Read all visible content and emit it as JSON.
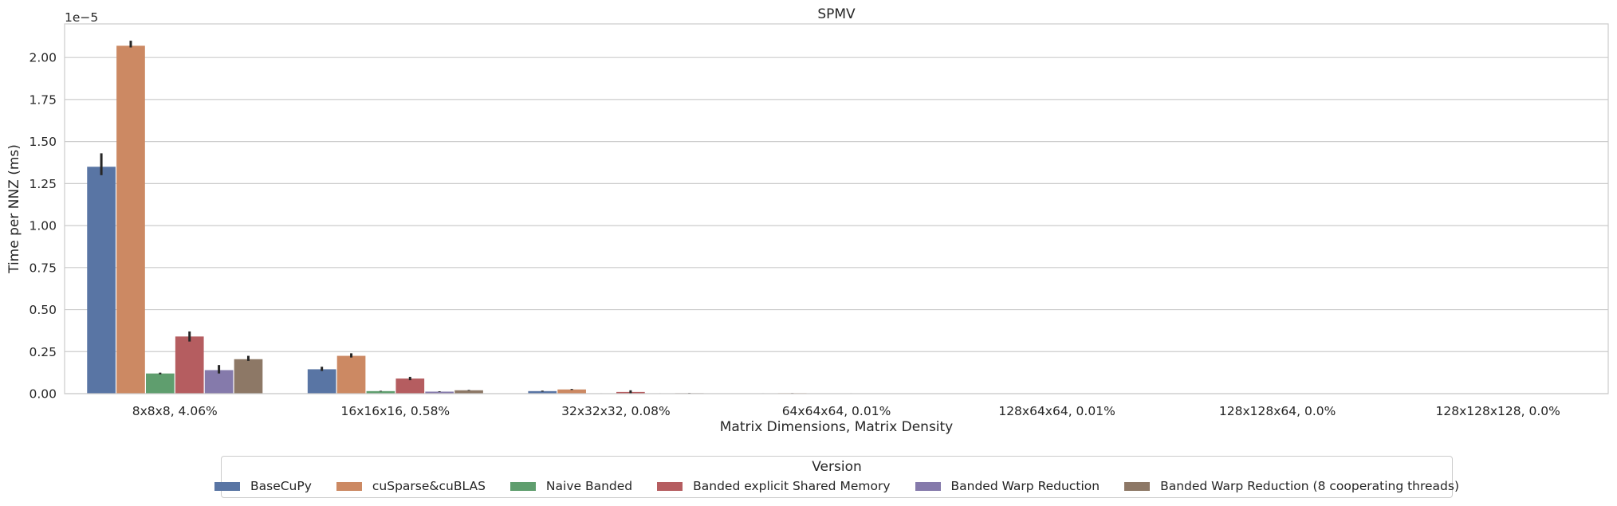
{
  "chart_data": {
    "type": "bar",
    "title": "SPMV",
    "xlabel": "Matrix Dimensions, Matrix Density",
    "ylabel": "Time per NNZ (ms)",
    "scale_label": "1e−5",
    "ylim": [
      0,
      2.2
    ],
    "yticks": [
      "0.00",
      "0.25",
      "0.50",
      "0.75",
      "1.00",
      "1.25",
      "1.50",
      "1.75",
      "2.00"
    ],
    "grid": true,
    "legend_position": "bottom-center",
    "legend_title": "Version",
    "categories": [
      "8x8x8, 4.06%",
      "16x16x16, 0.58%",
      "32x32x32, 0.08%",
      "64x64x64, 0.01%",
      "128x64x64, 0.01%",
      "128x128x64, 0.0%",
      "128x128x128, 0.0%"
    ],
    "series": [
      {
        "name": "BaseCuPy",
        "color": "#5975a4",
        "values": [
          1.35,
          0.145,
          0.015,
          0.002,
          0.001,
          0.0005,
          0.0003
        ],
        "error": [
          [
            1.3,
            1.43
          ],
          [
            0.135,
            0.16
          ],
          [
            0.012,
            0.018
          ],
          [
            0.0015,
            0.0025
          ],
          [
            0.0008,
            0.0012
          ],
          [
            0.0004,
            0.0006
          ],
          [
            0.0002,
            0.0004
          ]
        ]
      },
      {
        "name": "cuSparse&cuBLAS",
        "color": "#cc8963",
        "values": [
          2.07,
          0.225,
          0.025,
          0.003,
          0.0015,
          0.0007,
          0.0004
        ],
        "error": [
          [
            2.06,
            2.1
          ],
          [
            0.215,
            0.24
          ],
          [
            0.022,
            0.028
          ],
          [
            0.0025,
            0.0035
          ],
          [
            0.0012,
            0.0018
          ],
          [
            0.0005,
            0.0009
          ],
          [
            0.0003,
            0.0005
          ]
        ]
      },
      {
        "name": "Naive Banded",
        "color": "#5f9e6e",
        "values": [
          0.12,
          0.015,
          0.002,
          0.0003,
          0.0002,
          0.0001,
          0.0001
        ],
        "error": [
          [
            0.115,
            0.125
          ],
          [
            0.013,
            0.017
          ],
          [
            0.0015,
            0.0025
          ],
          [
            0.0002,
            0.0004
          ],
          [
            0.0001,
            0.0003
          ],
          [
            5e-05,
            0.00015
          ],
          [
            5e-05,
            0.00015
          ]
        ]
      },
      {
        "name": "Banded explicit Shared Memory",
        "color": "#b55d60",
        "values": [
          0.34,
          0.09,
          0.01,
          0.002,
          0.001,
          0.0005,
          0.0003
        ],
        "error": [
          [
            0.31,
            0.37
          ],
          [
            0.08,
            0.1
          ],
          [
            0.002,
            0.02
          ],
          [
            0.0015,
            0.0025
          ],
          [
            0.0008,
            0.0012
          ],
          [
            0.0004,
            0.0006
          ],
          [
            0.0002,
            0.0004
          ]
        ]
      },
      {
        "name": "Banded Warp Reduction",
        "color": "#857aab",
        "values": [
          0.14,
          0.012,
          0.002,
          0.0003,
          0.0002,
          0.0001,
          0.0001
        ],
        "error": [
          [
            0.12,
            0.17
          ],
          [
            0.01,
            0.014
          ],
          [
            0.0015,
            0.0025
          ],
          [
            0.0002,
            0.0004
          ],
          [
            0.0001,
            0.0003
          ],
          [
            5e-05,
            0.00015
          ],
          [
            5e-05,
            0.00015
          ]
        ]
      },
      {
        "name": "Banded Warp Reduction (8 cooperating threads)",
        "color": "#8d7866",
        "values": [
          0.205,
          0.02,
          0.003,
          0.0004,
          0.0002,
          0.0001,
          0.0001
        ],
        "error": [
          [
            0.195,
            0.225
          ],
          [
            0.018,
            0.022
          ],
          [
            0.002,
            0.004
          ],
          [
            0.0003,
            0.0005
          ],
          [
            0.0001,
            0.0003
          ],
          [
            5e-05,
            0.00015
          ],
          [
            5e-05,
            0.00015
          ]
        ]
      }
    ]
  }
}
